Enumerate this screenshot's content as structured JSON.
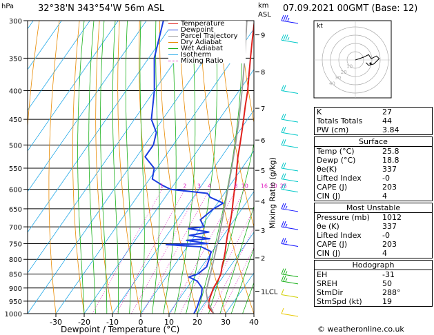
{
  "header": {
    "location": "32°38'N 343°54'W 56m ASL",
    "datetime": "07.09.2021 00GMT (Base: 12)",
    "hpa_label": "hPa",
    "km_label": "km",
    "asl_label": "ASL"
  },
  "chart_data": {
    "type": "skew-t",
    "xlabel": "Dewpoint / Temperature (°C)",
    "ylabel_right": "Mixing Ratio (g/kg)",
    "pressure_ticks": [
      300,
      350,
      400,
      450,
      500,
      550,
      600,
      650,
      700,
      750,
      800,
      850,
      900,
      950,
      1000
    ],
    "temperature_ticks": [
      -30,
      -20,
      -10,
      0,
      10,
      20,
      30,
      40
    ],
    "xlim": [
      -40,
      40
    ],
    "ylim_hpa": [
      1000,
      300
    ],
    "km_ticks": [
      {
        "km": "1LCL",
        "p": 912
      },
      {
        "km": "2",
        "p": 795
      },
      {
        "km": "3",
        "p": 710
      },
      {
        "km": "4",
        "p": 630
      },
      {
        "km": "5",
        "p": 555
      },
      {
        "km": "6",
        "p": 490
      },
      {
        "km": "7",
        "p": 430
      },
      {
        "km": "8",
        "p": 370
      },
      {
        "km": "9",
        "p": 318
      }
    ],
    "mixing_ratio_labels": [
      "1",
      "2",
      "3",
      "4",
      "8",
      "10",
      "16",
      "20",
      "25"
    ],
    "mixing_ratio_values": [
      1,
      2,
      3,
      4,
      8,
      10,
      16,
      20,
      25
    ],
    "legend": [
      {
        "label": "Temperature",
        "color": "#e0201c",
        "style": "solid"
      },
      {
        "label": "Dewpoint",
        "color": "#1a3ce0",
        "style": "solid"
      },
      {
        "label": "Parcel Trajectory",
        "color": "#999999",
        "style": "solid"
      },
      {
        "label": "Dry Adiabat",
        "color": "#e88a00",
        "style": "solid"
      },
      {
        "label": "Wet Adiabat",
        "color": "#18b018",
        "style": "solid"
      },
      {
        "label": "Isotherm",
        "color": "#20a8e8",
        "style": "solid"
      },
      {
        "label": "Mixing Ratio",
        "color": "#e020c0",
        "style": "dotted"
      }
    ],
    "series": [
      {
        "name": "Temperature",
        "color": "#e0201c",
        "points": [
          [
            1000,
            25.8
          ],
          [
            975,
            22.5
          ],
          [
            950,
            21.0
          ],
          [
            925,
            20.2
          ],
          [
            900,
            19.4
          ],
          [
            875,
            19.2
          ],
          [
            850,
            18.6
          ],
          [
            825,
            17.2
          ],
          [
            800,
            16.0
          ],
          [
            775,
            14.6
          ],
          [
            750,
            13.0
          ],
          [
            725,
            11.4
          ],
          [
            700,
            10.0
          ],
          [
            675,
            8.4
          ],
          [
            650,
            6.6
          ],
          [
            625,
            4.6
          ],
          [
            600,
            2.6
          ],
          [
            575,
            0.6
          ],
          [
            550,
            -1.8
          ],
          [
            525,
            -4.2
          ],
          [
            500,
            -6.4
          ],
          [
            475,
            -8.8
          ],
          [
            450,
            -11.4
          ],
          [
            425,
            -14.2
          ],
          [
            400,
            -17.0
          ],
          [
            375,
            -20.4
          ],
          [
            350,
            -24.0
          ],
          [
            325,
            -27.8
          ],
          [
            300,
            -31.8
          ]
        ]
      },
      {
        "name": "Dewpoint",
        "color": "#1a3ce0",
        "points": [
          [
            1000,
            18.8
          ],
          [
            975,
            18.4
          ],
          [
            950,
            17.6
          ],
          [
            925,
            16.8
          ],
          [
            900,
            15.4
          ],
          [
            875,
            12.0
          ],
          [
            860,
            8.0
          ],
          [
            850,
            10.4
          ],
          [
            825,
            11.8
          ],
          [
            800,
            10.8
          ],
          [
            775,
            9.6
          ],
          [
            760,
            5.0
          ],
          [
            753,
            -8.0
          ],
          [
            750,
            6.6
          ],
          [
            740,
            -1.8
          ],
          [
            735,
            6.0
          ],
          [
            725,
            -2.0
          ],
          [
            715,
            4.0
          ],
          [
            705,
            -4.0
          ],
          [
            700,
            1.0
          ],
          [
            680,
            -2.0
          ],
          [
            650,
            0.0
          ],
          [
            635,
            2.0
          ],
          [
            620,
            -4.0
          ],
          [
            610,
            -6.0
          ],
          [
            600,
            -20.0
          ],
          [
            590,
            -24.0
          ],
          [
            575,
            -29.0
          ],
          [
            550,
            -31.0
          ],
          [
            525,
            -37.0
          ],
          [
            512,
            -37.0
          ],
          [
            500,
            -37.0
          ],
          [
            475,
            -39.0
          ],
          [
            450,
            -44.0
          ],
          [
            400,
            -50.0
          ],
          [
            350,
            -58.0
          ],
          [
            300,
            -64.0
          ]
        ]
      },
      {
        "name": "Parcel Trajectory",
        "color": "#999999",
        "points": [
          [
            1000,
            25.8
          ],
          [
            950,
            20.6
          ],
          [
            912,
            17.6
          ],
          [
            875,
            16.0
          ],
          [
            850,
            14.9
          ],
          [
            800,
            12.5
          ],
          [
            750,
            9.9
          ],
          [
            700,
            7.0
          ],
          [
            650,
            3.8
          ],
          [
            600,
            0.2
          ],
          [
            550,
            -3.6
          ],
          [
            500,
            -8.0
          ],
          [
            450,
            -13.0
          ],
          [
            400,
            -19.0
          ],
          [
            350,
            -26.0
          ],
          [
            300,
            -34.5
          ]
        ]
      }
    ],
    "hodograph": {
      "label": "kt",
      "ring_labels": [
        "10",
        "20",
        "30",
        "40"
      ],
      "rings_kt": [
        10,
        20,
        30,
        40
      ],
      "trace": [
        [
          0,
          0
        ],
        [
          6,
          -2
        ],
        [
          10,
          -4
        ],
        [
          12,
          -1
        ],
        [
          16,
          -3
        ],
        [
          18,
          -1
        ],
        [
          14,
          3
        ],
        [
          10,
          4
        ],
        [
          8,
          2
        ]
      ]
    },
    "wind_barbs": [
      {
        "p": 300,
        "kt": 25,
        "dir": 270,
        "color": "#1010ff"
      },
      {
        "p": 325,
        "kt": 25,
        "dir": 265,
        "color": "#00c8c8"
      },
      {
        "p": 400,
        "kt": 20,
        "dir": 270,
        "color": "#00c8c8"
      },
      {
        "p": 450,
        "kt": 20,
        "dir": 270,
        "color": "#00c8c8"
      },
      {
        "p": 475,
        "kt": 20,
        "dir": 270,
        "color": "#00c8c8"
      },
      {
        "p": 500,
        "kt": 20,
        "dir": 270,
        "color": "#00c8c8"
      },
      {
        "p": 550,
        "kt": 20,
        "dir": 270,
        "color": "#00c8c8"
      },
      {
        "p": 575,
        "kt": 20,
        "dir": 270,
        "color": "#00c8c8"
      },
      {
        "p": 600,
        "kt": 20,
        "dir": 270,
        "color": "#00c8c8"
      },
      {
        "p": 650,
        "kt": 15,
        "dir": 280,
        "color": "#1010ff"
      },
      {
        "p": 700,
        "kt": 15,
        "dir": 280,
        "color": "#1010ff"
      },
      {
        "p": 750,
        "kt": 15,
        "dir": 280,
        "color": "#1010ff"
      },
      {
        "p": 850,
        "kt": 15,
        "dir": 300,
        "color": "#18b018"
      },
      {
        "p": 875,
        "kt": 15,
        "dir": 300,
        "color": "#18b018"
      },
      {
        "p": 925,
        "kt": 10,
        "dir": 320,
        "color": "#d0d000"
      },
      {
        "p": 1000,
        "kt": 10,
        "dir": 340,
        "color": "#e8c800"
      }
    ]
  },
  "indices": {
    "top": [
      {
        "label": "K",
        "value": "27"
      },
      {
        "label": "Totals Totals",
        "value": "44"
      },
      {
        "label": "PW (cm)",
        "value": "3.84"
      }
    ],
    "surface": {
      "title": "Surface",
      "rows": [
        {
          "label": "Temp (°C)",
          "value": "25.8"
        },
        {
          "label": "Dewp (°C)",
          "value": "18.8"
        },
        {
          "label": "θe(K)",
          "value": "337"
        },
        {
          "label": "Lifted Index",
          "value": "-0"
        },
        {
          "label": "CAPE (J)",
          "value": "203"
        },
        {
          "label": "CIN (J)",
          "value": "4"
        }
      ]
    },
    "most_unstable": {
      "title": "Most Unstable",
      "rows": [
        {
          "label": "Pressure (mb)",
          "value": "1012"
        },
        {
          "label": "θe (K)",
          "value": "337"
        },
        {
          "label": "Lifted Index",
          "value": "-0"
        },
        {
          "label": "CAPE (J)",
          "value": "203"
        },
        {
          "label": "CIN (J)",
          "value": "4"
        }
      ]
    },
    "hodograph": {
      "title": "Hodograph",
      "rows": [
        {
          "label": "EH",
          "value": "-31"
        },
        {
          "label": "SREH",
          "value": "50"
        },
        {
          "label": "StmDir",
          "value": "288°"
        },
        {
          "label": "StmSpd (kt)",
          "value": "19"
        }
      ]
    }
  },
  "footer": {
    "copyright": "© weatheronline.co.uk"
  }
}
